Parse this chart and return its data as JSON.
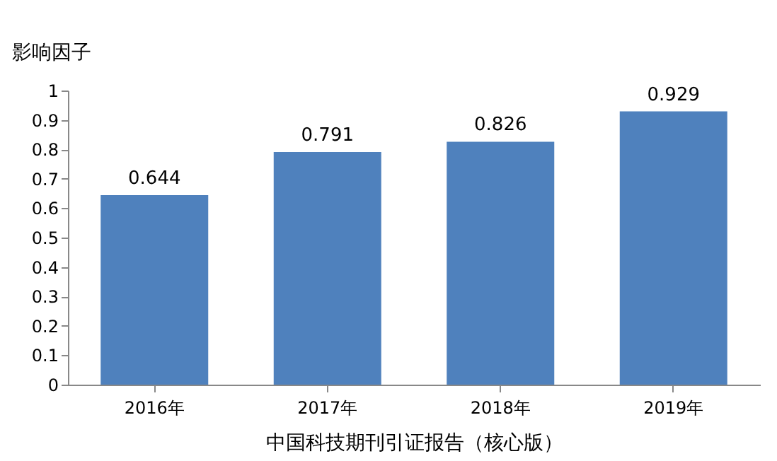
{
  "chart_data": {
    "type": "bar",
    "categories": [
      "2016年",
      "2017年",
      "2018年",
      "2019年"
    ],
    "values": [
      0.644,
      0.791,
      0.826,
      0.929
    ],
    "color": "#4f81bd",
    "ylabel": "影响因子",
    "xlabel": "中国科技期刊引证报告（核心版）",
    "ylim": [
      0,
      1
    ],
    "yticks": [
      0,
      0.1,
      0.2,
      0.3,
      0.4,
      0.5,
      0.6,
      0.7,
      0.8,
      0.9,
      1
    ],
    "data_labels": true,
    "grid": false
  }
}
